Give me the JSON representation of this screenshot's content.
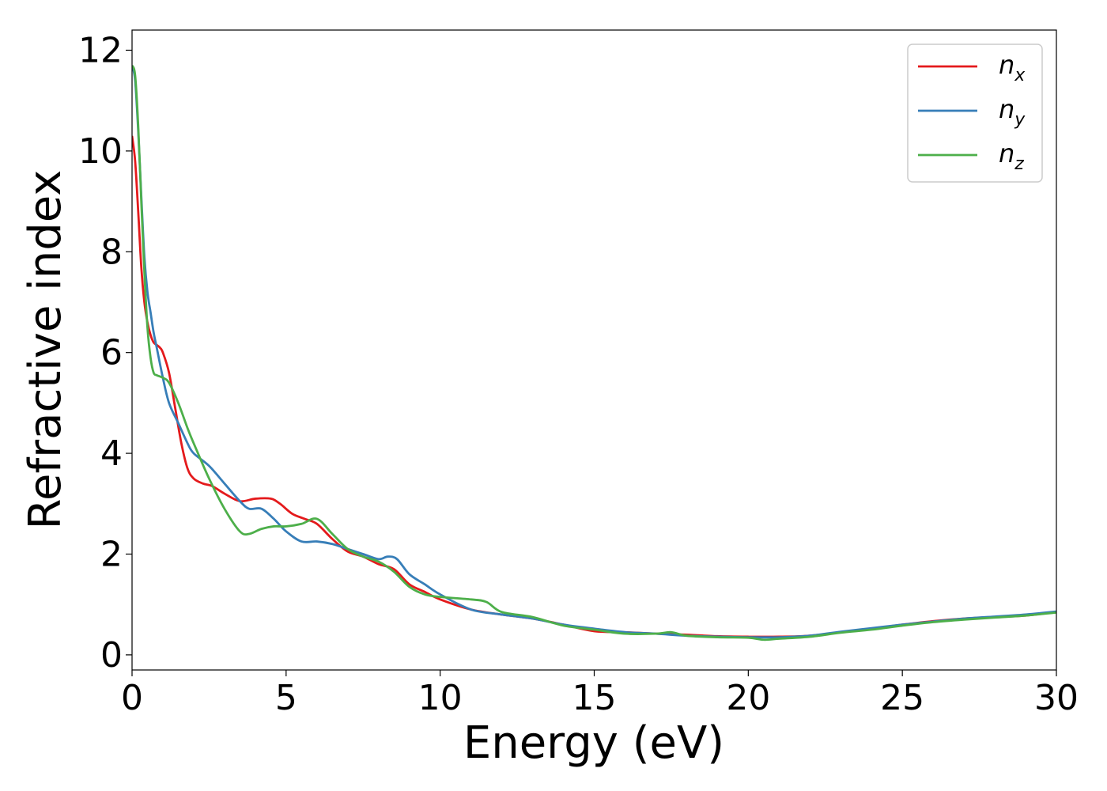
{
  "chart_data": {
    "type": "line",
    "title": "",
    "xlabel": "Energy (eV)",
    "ylabel": "Refractive index",
    "xlim": [
      0,
      30
    ],
    "ylim": [
      -0.3,
      12.4
    ],
    "xticks": [
      0,
      5,
      10,
      15,
      20,
      25,
      30
    ],
    "yticks": [
      0,
      2,
      4,
      6,
      8,
      10,
      12
    ],
    "grid": false,
    "legend_position": "top-right",
    "series": [
      {
        "name": "n_x",
        "label_base": "n",
        "label_sub": "x",
        "color": "#e41a1c",
        "x": [
          0,
          0.1,
          0.2,
          0.3,
          0.4,
          0.5,
          0.6,
          0.7,
          0.8,
          0.9,
          1.0,
          1.2,
          1.4,
          1.6,
          1.8,
          2.0,
          2.3,
          2.6,
          3.0,
          3.5,
          4.0,
          4.5,
          4.8,
          5.2,
          5.6,
          6.0,
          6.5,
          7.0,
          7.5,
          8.0,
          8.5,
          9.0,
          9.5,
          10,
          11,
          12,
          13,
          14,
          15,
          16,
          17,
          18,
          19,
          20,
          21,
          22,
          23,
          24,
          25,
          26,
          27,
          28,
          29,
          30
        ],
        "y": [
          10.3,
          9.8,
          8.8,
          7.7,
          7.0,
          6.6,
          6.35,
          6.2,
          6.15,
          6.1,
          6.0,
          5.6,
          4.9,
          4.2,
          3.7,
          3.5,
          3.4,
          3.35,
          3.2,
          3.05,
          3.1,
          3.1,
          3.0,
          2.8,
          2.7,
          2.6,
          2.3,
          2.05,
          1.95,
          1.8,
          1.7,
          1.4,
          1.25,
          1.1,
          0.9,
          0.8,
          0.72,
          0.6,
          0.47,
          0.45,
          0.42,
          0.4,
          0.37,
          0.36,
          0.36,
          0.38,
          0.45,
          0.52,
          0.6,
          0.67,
          0.72,
          0.75,
          0.78,
          0.85
        ]
      },
      {
        "name": "n_y",
        "label_base": "n",
        "label_sub": "y",
        "color": "#377eb8",
        "x": [
          0,
          0.1,
          0.2,
          0.3,
          0.4,
          0.5,
          0.6,
          0.7,
          0.8,
          1.0,
          1.2,
          1.5,
          1.8,
          2.0,
          2.5,
          3.0,
          3.5,
          3.8,
          4.2,
          4.6,
          5.0,
          5.5,
          6.0,
          6.5,
          7.0,
          7.5,
          8.0,
          8.3,
          8.6,
          9.0,
          9.5,
          10,
          11,
          12,
          13,
          14,
          15,
          16,
          17,
          18,
          19,
          20,
          21,
          22,
          23,
          24,
          25,
          26,
          27,
          28,
          29,
          30
        ],
        "y": [
          11.7,
          11.4,
          10.4,
          9.1,
          7.9,
          7.2,
          6.8,
          6.4,
          6.1,
          5.5,
          5.0,
          4.6,
          4.2,
          4.0,
          3.75,
          3.4,
          3.05,
          2.9,
          2.9,
          2.7,
          2.45,
          2.25,
          2.25,
          2.2,
          2.1,
          2.0,
          1.9,
          1.95,
          1.9,
          1.6,
          1.4,
          1.2,
          0.9,
          0.8,
          0.72,
          0.6,
          0.52,
          0.45,
          0.42,
          0.38,
          0.36,
          0.35,
          0.35,
          0.38,
          0.46,
          0.53,
          0.6,
          0.66,
          0.72,
          0.76,
          0.8,
          0.86
        ]
      },
      {
        "name": "n_z",
        "label_base": "n",
        "label_sub": "z",
        "color": "#4daf4a",
        "x": [
          0,
          0.1,
          0.2,
          0.3,
          0.4,
          0.5,
          0.6,
          0.7,
          0.8,
          1.0,
          1.2,
          1.5,
          1.8,
          2.0,
          2.5,
          3.0,
          3.5,
          3.8,
          4.2,
          4.6,
          5.0,
          5.5,
          6.0,
          6.5,
          7.0,
          7.5,
          8.0,
          8.5,
          9.0,
          9.5,
          10,
          11,
          11.5,
          12,
          13,
          14,
          15,
          16,
          17,
          17.5,
          18,
          19,
          20,
          20.5,
          21,
          22,
          23,
          24,
          25,
          26,
          27,
          28,
          29,
          30
        ],
        "y": [
          11.7,
          11.5,
          10.5,
          9.0,
          7.6,
          6.5,
          5.9,
          5.6,
          5.55,
          5.5,
          5.4,
          5.0,
          4.5,
          4.2,
          3.5,
          2.9,
          2.45,
          2.4,
          2.5,
          2.55,
          2.55,
          2.6,
          2.7,
          2.4,
          2.1,
          1.95,
          1.85,
          1.65,
          1.35,
          1.2,
          1.15,
          1.1,
          1.05,
          0.85,
          0.75,
          0.58,
          0.5,
          0.42,
          0.42,
          0.45,
          0.38,
          0.35,
          0.34,
          0.3,
          0.32,
          0.36,
          0.44,
          0.5,
          0.58,
          0.65,
          0.7,
          0.74,
          0.78,
          0.84
        ]
      }
    ]
  }
}
